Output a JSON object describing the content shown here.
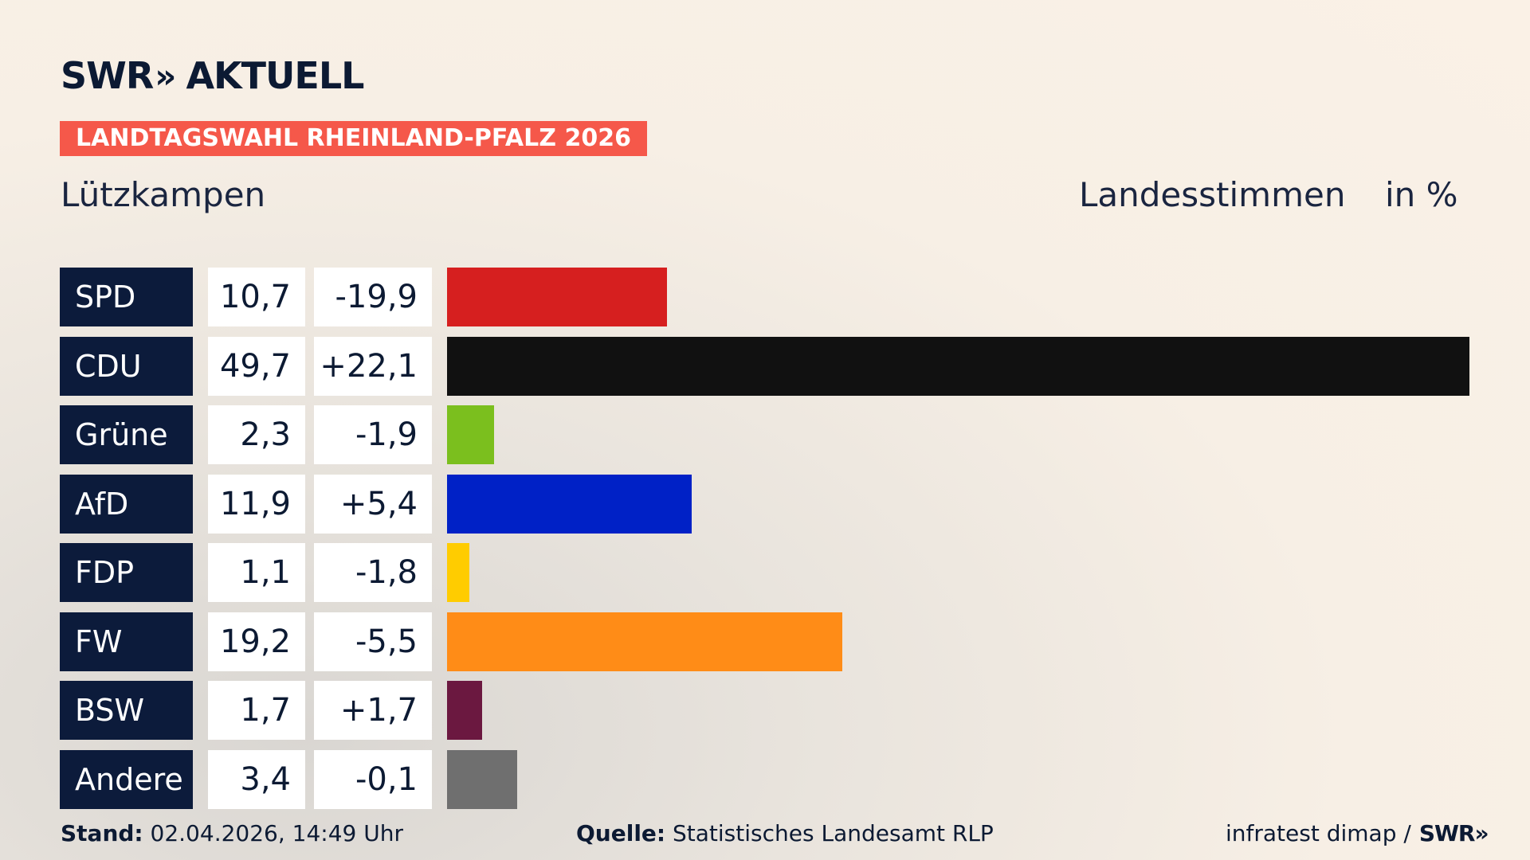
{
  "brand": {
    "swr": "SWR",
    "chevrons": "»",
    "aktuell": "AKTUELL"
  },
  "badge": "LANDTAGSWAHL RHEINLAND-PFALZ 2026",
  "region": "Lützkampen",
  "metric": "Landesstimmen",
  "unit": "in %",
  "chart_data": {
    "type": "bar",
    "categories": [
      "SPD",
      "CDU",
      "Grüne",
      "AfD",
      "FDP",
      "FW",
      "BSW",
      "Andere"
    ],
    "values": [
      10.7,
      49.7,
      2.3,
      11.9,
      1.1,
      19.2,
      1.7,
      3.4
    ],
    "value_labels": [
      "10,7",
      "49,7",
      "2,3",
      "11,9",
      "1,1",
      "19,2",
      "1,7",
      "3,4"
    ],
    "changes": [
      -19.9,
      22.1,
      -1.9,
      5.4,
      -1.8,
      -5.5,
      1.7,
      -0.1
    ],
    "change_labels": [
      "-19,9",
      "+22,1",
      "-1,9",
      "+5,4",
      "-1,8",
      "-5,5",
      "+1,7",
      "-0,1"
    ],
    "colors": [
      "#d61f1f",
      "#111111",
      "#7bbf1e",
      "#0021c6",
      "#ffcc00",
      "#ff8c17",
      "#6b1840",
      "#6f6f6f"
    ],
    "orientation": "horizontal",
    "xlim": [
      0,
      49.7
    ]
  },
  "footer": {
    "stand_label": "Stand:",
    "stand_value": "02.04.2026, 14:49 Uhr",
    "quelle_label": "Quelle:",
    "quelle_value": "Statistisches Landesamt RLP",
    "credit": "infratest dimap /",
    "credit_brand": "SWR»"
  }
}
